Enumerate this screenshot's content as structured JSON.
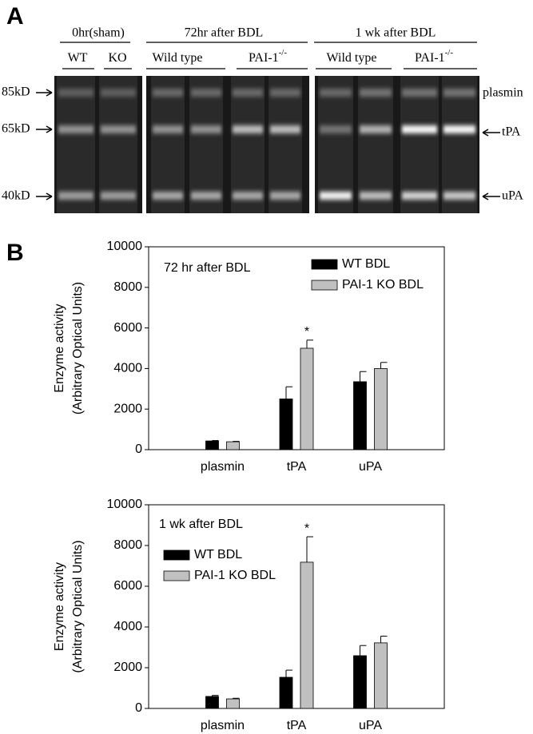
{
  "panel_a": {
    "label": "A",
    "groups": [
      {
        "title": "0hr(sham)",
        "lanes": [
          {
            "text": "WT"
          },
          {
            "text": "KO"
          }
        ]
      },
      {
        "title": "72hr after BDL",
        "lanes": [
          {
            "text": "Wild type"
          },
          {
            "text": "PAI-1",
            "sup": "-/-"
          }
        ]
      },
      {
        "title": "1 wk after BDL",
        "lanes": [
          {
            "text": "Wild type"
          },
          {
            "text": "PAI-1",
            "sup": "-/-"
          }
        ]
      }
    ],
    "markers": [
      "85kD",
      "65kD",
      "40kD"
    ],
    "bands": [
      "plasmin",
      "tPA",
      "uPA"
    ]
  },
  "panel_b": {
    "label": "B"
  },
  "chart_data": [
    {
      "type": "bar",
      "title": "72 hr after BDL",
      "ylabel": [
        "Enzyme activity",
        "(Arbitrary Optical Units)"
      ],
      "categories": [
        "plasmin",
        "tPA",
        "uPA"
      ],
      "series": [
        {
          "name": "WT BDL",
          "color": "#000000",
          "values": [
            430,
            2500,
            3350
          ],
          "errors": [
            20,
            600,
            500
          ]
        },
        {
          "name": "PAI-1 KO BDL",
          "color": "#c0c0c0",
          "values": [
            390,
            5000,
            4000
          ],
          "errors": [
            20,
            400,
            300
          ],
          "labels": [
            null,
            "*",
            null
          ]
        }
      ],
      "ylim": [
        0,
        10000
      ],
      "yticks": [
        0,
        2000,
        4000,
        6000,
        8000,
        10000
      ],
      "legend": "upper right"
    },
    {
      "type": "bar",
      "title": "1 wk after BDL",
      "ylabel": [
        "Enzyme activity",
        "(Arbitrary Optical Units)"
      ],
      "categories": [
        "plasmin",
        "tPA",
        "uPA"
      ],
      "series": [
        {
          "name": "WT BDL",
          "color": "#000000",
          "values": [
            590,
            1530,
            2590
          ],
          "errors": [
            50,
            350,
            500
          ]
        },
        {
          "name": "PAI-1 KO BDL",
          "color": "#c0c0c0",
          "values": [
            470,
            7180,
            3220
          ],
          "errors": [
            30,
            1250,
            330
          ],
          "labels": [
            null,
            "*",
            null
          ]
        }
      ],
      "ylim": [
        0,
        10000
      ],
      "yticks": [
        0,
        2000,
        4000,
        6000,
        8000,
        10000
      ],
      "legend": "upper left"
    }
  ]
}
